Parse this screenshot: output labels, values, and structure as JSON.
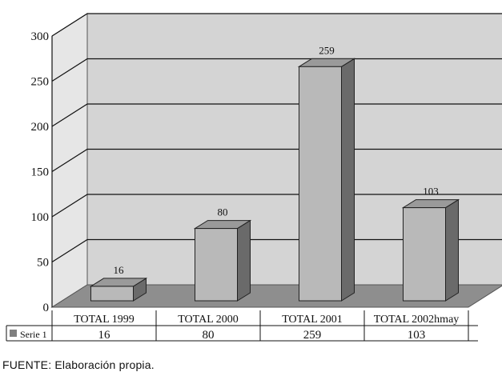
{
  "chart_data": {
    "type": "bar",
    "categories": [
      "TOTAL 1999",
      "TOTAL 2000",
      "TOTAL 2001",
      "TOTAL 2002hmay"
    ],
    "series": [
      {
        "name": "Serie 1",
        "values": [
          16,
          80,
          259,
          103
        ]
      }
    ],
    "ylim": [
      0,
      300
    ],
    "yticks": [
      0,
      50,
      100,
      150,
      200,
      250,
      300
    ],
    "grid": true,
    "three_d": true,
    "data_table": true,
    "colors": {
      "wall": "#d4d4d4",
      "floor": "#8e8e8e",
      "bar_front": "#b9b9b9",
      "bar_top": "#9a9a9a",
      "bar_side": "#6a6a6a",
      "legend_key": "#7f7f7f"
    }
  },
  "source_note": "FUENTE: Elaboración propia."
}
